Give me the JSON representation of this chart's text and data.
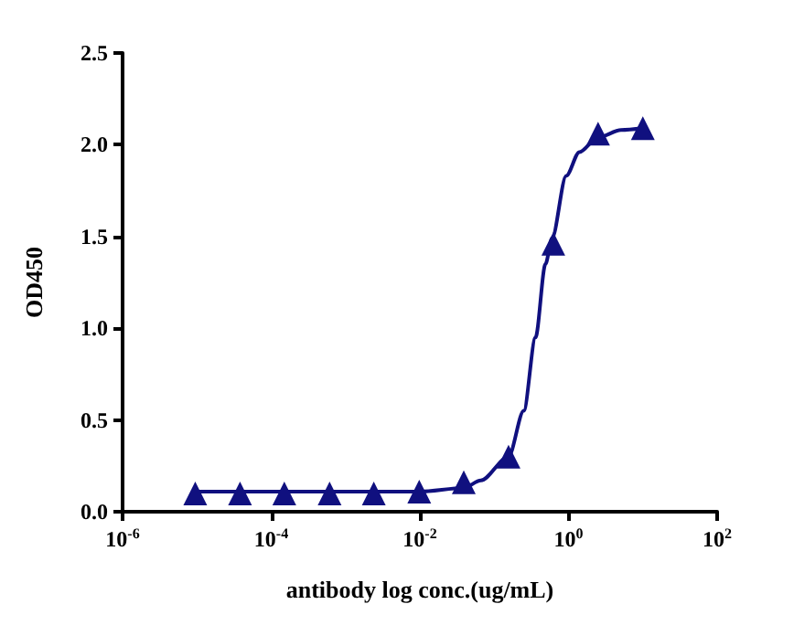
{
  "chart_data": {
    "type": "scatter",
    "xlabel": "antibody log conc.(ug/mL)",
    "ylabel": "OD450",
    "log": "x",
    "marker": "triangle",
    "grid": false,
    "xlim": [
      1e-06,
      100
    ],
    "xticks": [
      {
        "value": 1e-06,
        "label": "10$^{-6}$"
      },
      {
        "value": 0.0001,
        "label": "10$^{-4}$"
      },
      {
        "value": 0.01,
        "label": "10$^{-2}$"
      },
      {
        "value": 1,
        "label": "10$^{0}$"
      },
      {
        "value": 100,
        "label": "10$^{2}$"
      }
    ],
    "ylim": [
      0,
      2.5
    ],
    "yticks": [
      {
        "value": 0,
        "label": "0.0"
      },
      {
        "value": 0.5,
        "label": "0.5"
      },
      {
        "value": 1,
        "label": "1.0"
      },
      {
        "value": 1.5,
        "label": "1.5"
      },
      {
        "value": 2,
        "label": "2.0"
      },
      {
        "value": 2.5,
        "label": "2.5"
      }
    ],
    "series": [
      {
        "color": "#10107f",
        "x": [
          9.5e-06,
          3.8e-05,
          0.00015,
          0.00061,
          0.0024,
          0.0098,
          0.039,
          0.156,
          0.625,
          2.5,
          10
        ],
        "values": [
          0.1,
          0.1,
          0.1,
          0.1,
          0.1,
          0.11,
          0.16,
          0.3,
          1.46,
          2.06,
          2.09
        ]
      },
      {
        "type": "line",
        "color": "#10107f",
        "marker": "none",
        "x": [
          9.5e-06,
          0.0001,
          0.001,
          0.01,
          0.039,
          0.066,
          0.156,
          0.25,
          0.36,
          0.49,
          0.6,
          0.93,
          1.4,
          2.5,
          5.1,
          10
        ],
        "values": [
          0.11,
          0.11,
          0.11,
          0.11,
          0.13,
          0.17,
          0.3,
          0.55,
          0.95,
          1.35,
          1.49,
          1.83,
          1.96,
          2.04,
          2.08,
          2.09
        ]
      }
    ]
  }
}
